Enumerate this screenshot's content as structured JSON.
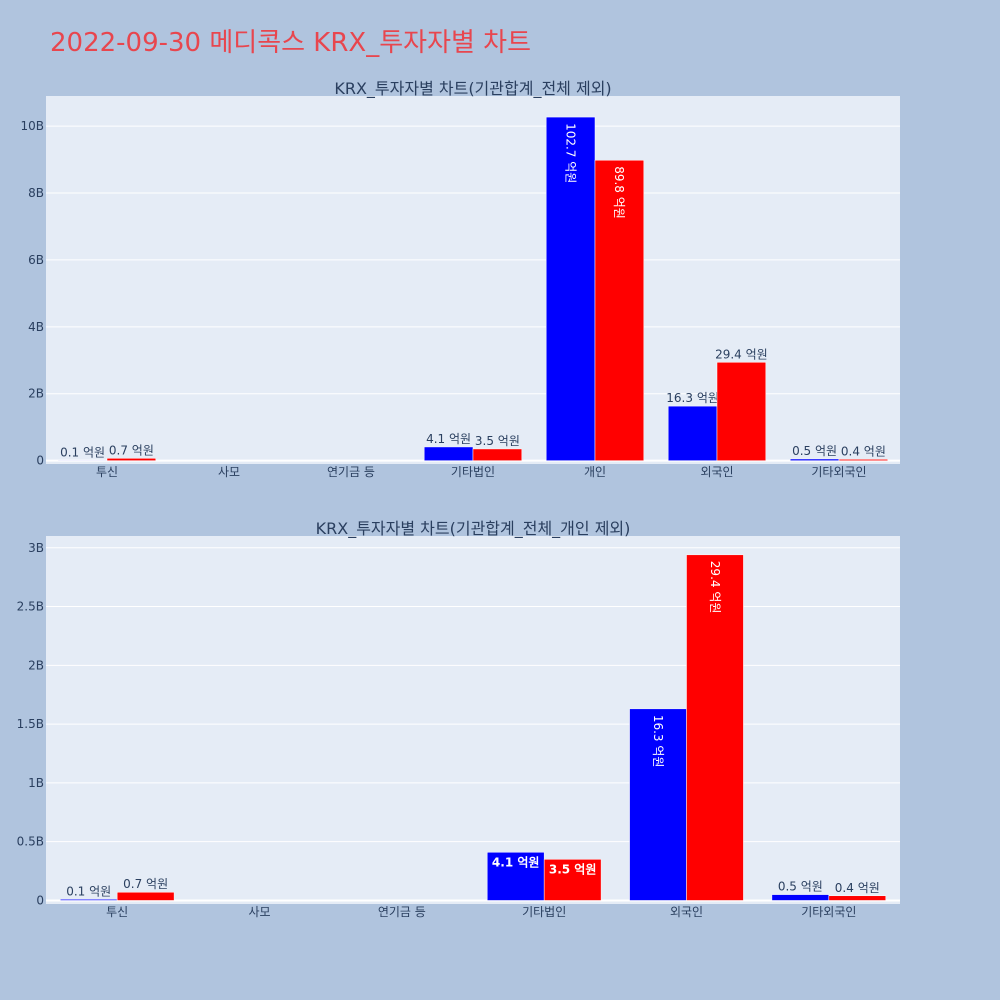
{
  "page": {
    "title": "2022-09-30 메디콕스 KRX_투자자별 차트"
  },
  "colors": {
    "background": "#b0c4de",
    "plot_background": "#e5ecf6",
    "grid": "#ffffff",
    "title": "#e8464e",
    "text": "#2a3f5f",
    "series_a": "#0000ff",
    "series_b": "#ff0000"
  },
  "chart_data": [
    {
      "type": "bar",
      "title": "KRX_투자자별 차트(기관합계_전체 제외)",
      "xlabel": "",
      "ylabel": "",
      "categories": [
        "투신",
        "사모",
        "연기금 등",
        "기타법인",
        "개인",
        "외국인",
        "기타외국인"
      ],
      "series": [
        {
          "values": [
            10000000,
            0,
            0,
            410000000,
            10270000000,
            1630000000,
            50000000
          ],
          "labels": [
            "0.1 억원",
            "",
            "",
            "4.1 억원",
            "102.7 억원",
            "16.3 억원",
            "0.5 억원"
          ]
        },
        {
          "values": [
            70000000,
            0,
            0,
            350000000,
            8980000000,
            2940000000,
            40000000
          ],
          "labels": [
            "0.7 억원",
            "",
            "",
            "3.5 억원",
            "89.8 억원",
            "29.4 억원",
            "0.4 억원"
          ]
        }
      ],
      "ylim": [
        -100000000,
        10900000000
      ],
      "yticks": [
        {
          "v": 0,
          "label": "0"
        },
        {
          "v": 2000000000,
          "label": "2B"
        },
        {
          "v": 4000000000,
          "label": "4B"
        },
        {
          "v": 6000000000,
          "label": "6B"
        },
        {
          "v": 8000000000,
          "label": "8B"
        },
        {
          "v": 10000000000,
          "label": "10B"
        }
      ],
      "grid": true,
      "legend": "none"
    },
    {
      "type": "bar",
      "title": "KRX_투자자별 차트(기관합계_전체_개인 제외)",
      "xlabel": "",
      "ylabel": "",
      "categories": [
        "투신",
        "사모",
        "연기금 등",
        "기타법인",
        "외국인",
        "기타외국인"
      ],
      "series": [
        {
          "values": [
            10000000,
            0,
            0,
            410000000,
            1630000000,
            50000000
          ],
          "labels": [
            "0.1 억원",
            "",
            "",
            "4.1 억원",
            "16.3 억원",
            "0.5 억원"
          ]
        },
        {
          "values": [
            70000000,
            0,
            0,
            350000000,
            2940000000,
            40000000
          ],
          "labels": [
            "0.7 억원",
            "",
            "",
            "3.5 억원",
            "29.4 억원",
            "0.4 억원"
          ]
        }
      ],
      "ylim": [
        -30000000,
        3100000000
      ],
      "yticks": [
        {
          "v": 0,
          "label": "0"
        },
        {
          "v": 500000000,
          "label": "0.5B"
        },
        {
          "v": 1000000000,
          "label": "1B"
        },
        {
          "v": 1500000000,
          "label": "1.5B"
        },
        {
          "v": 2000000000,
          "label": "2B"
        },
        {
          "v": 2500000000,
          "label": "2.5B"
        },
        {
          "v": 3000000000,
          "label": "3B"
        }
      ],
      "grid": true,
      "legend": "none"
    }
  ]
}
